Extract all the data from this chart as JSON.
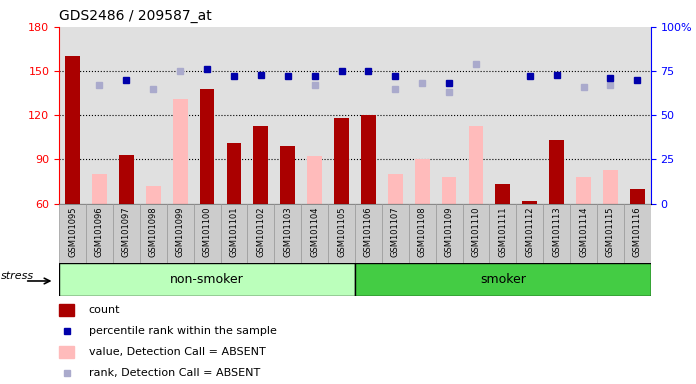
{
  "title": "GDS2486 / 209587_at",
  "samples": [
    "GSM101095",
    "GSM101096",
    "GSM101097",
    "GSM101098",
    "GSM101099",
    "GSM101100",
    "GSM101101",
    "GSM101102",
    "GSM101103",
    "GSM101104",
    "GSM101105",
    "GSM101106",
    "GSM101107",
    "GSM101108",
    "GSM101109",
    "GSM101110",
    "GSM101111",
    "GSM101112",
    "GSM101113",
    "GSM101114",
    "GSM101115",
    "GSM101116"
  ],
  "count_values": [
    160,
    null,
    93,
    null,
    null,
    138,
    101,
    113,
    99,
    null,
    118,
    120,
    null,
    null,
    null,
    null,
    73,
    62,
    103,
    null,
    null,
    70
  ],
  "absent_bar_values": [
    null,
    80,
    null,
    72,
    131,
    null,
    null,
    null,
    null,
    92,
    null,
    null,
    80,
    90,
    78,
    113,
    null,
    null,
    null,
    78,
    83,
    null
  ],
  "percentile_rank": [
    null,
    null,
    70,
    null,
    null,
    76,
    72,
    73,
    72,
    72,
    75,
    75,
    72,
    null,
    68,
    null,
    null,
    72,
    73,
    null,
    71,
    70
  ],
  "absent_rank": [
    null,
    67,
    null,
    65,
    75,
    null,
    null,
    null,
    null,
    67,
    null,
    null,
    65,
    68,
    63,
    79,
    null,
    null,
    null,
    66,
    67,
    null
  ],
  "group_split": 11,
  "ylim_left": [
    60,
    180
  ],
  "ylim_right": [
    0,
    100
  ],
  "yticks_left": [
    60,
    90,
    120,
    150,
    180
  ],
  "yticks_right": [
    0,
    25,
    50,
    75,
    100
  ],
  "bar_color_present": "#aa0000",
  "bar_color_absent": "#ffbbbb",
  "dot_color_present": "#0000aa",
  "dot_color_absent": "#aaaacc",
  "bg_color_plot": "#e0e0e0",
  "bg_color_nonsmoker": "#bbffbb",
  "bg_color_smoker": "#44cc44",
  "tick_box_color": "#cccccc",
  "label_nonsmoker": "non-smoker",
  "label_smoker": "smoker",
  "label_stress": "stress"
}
